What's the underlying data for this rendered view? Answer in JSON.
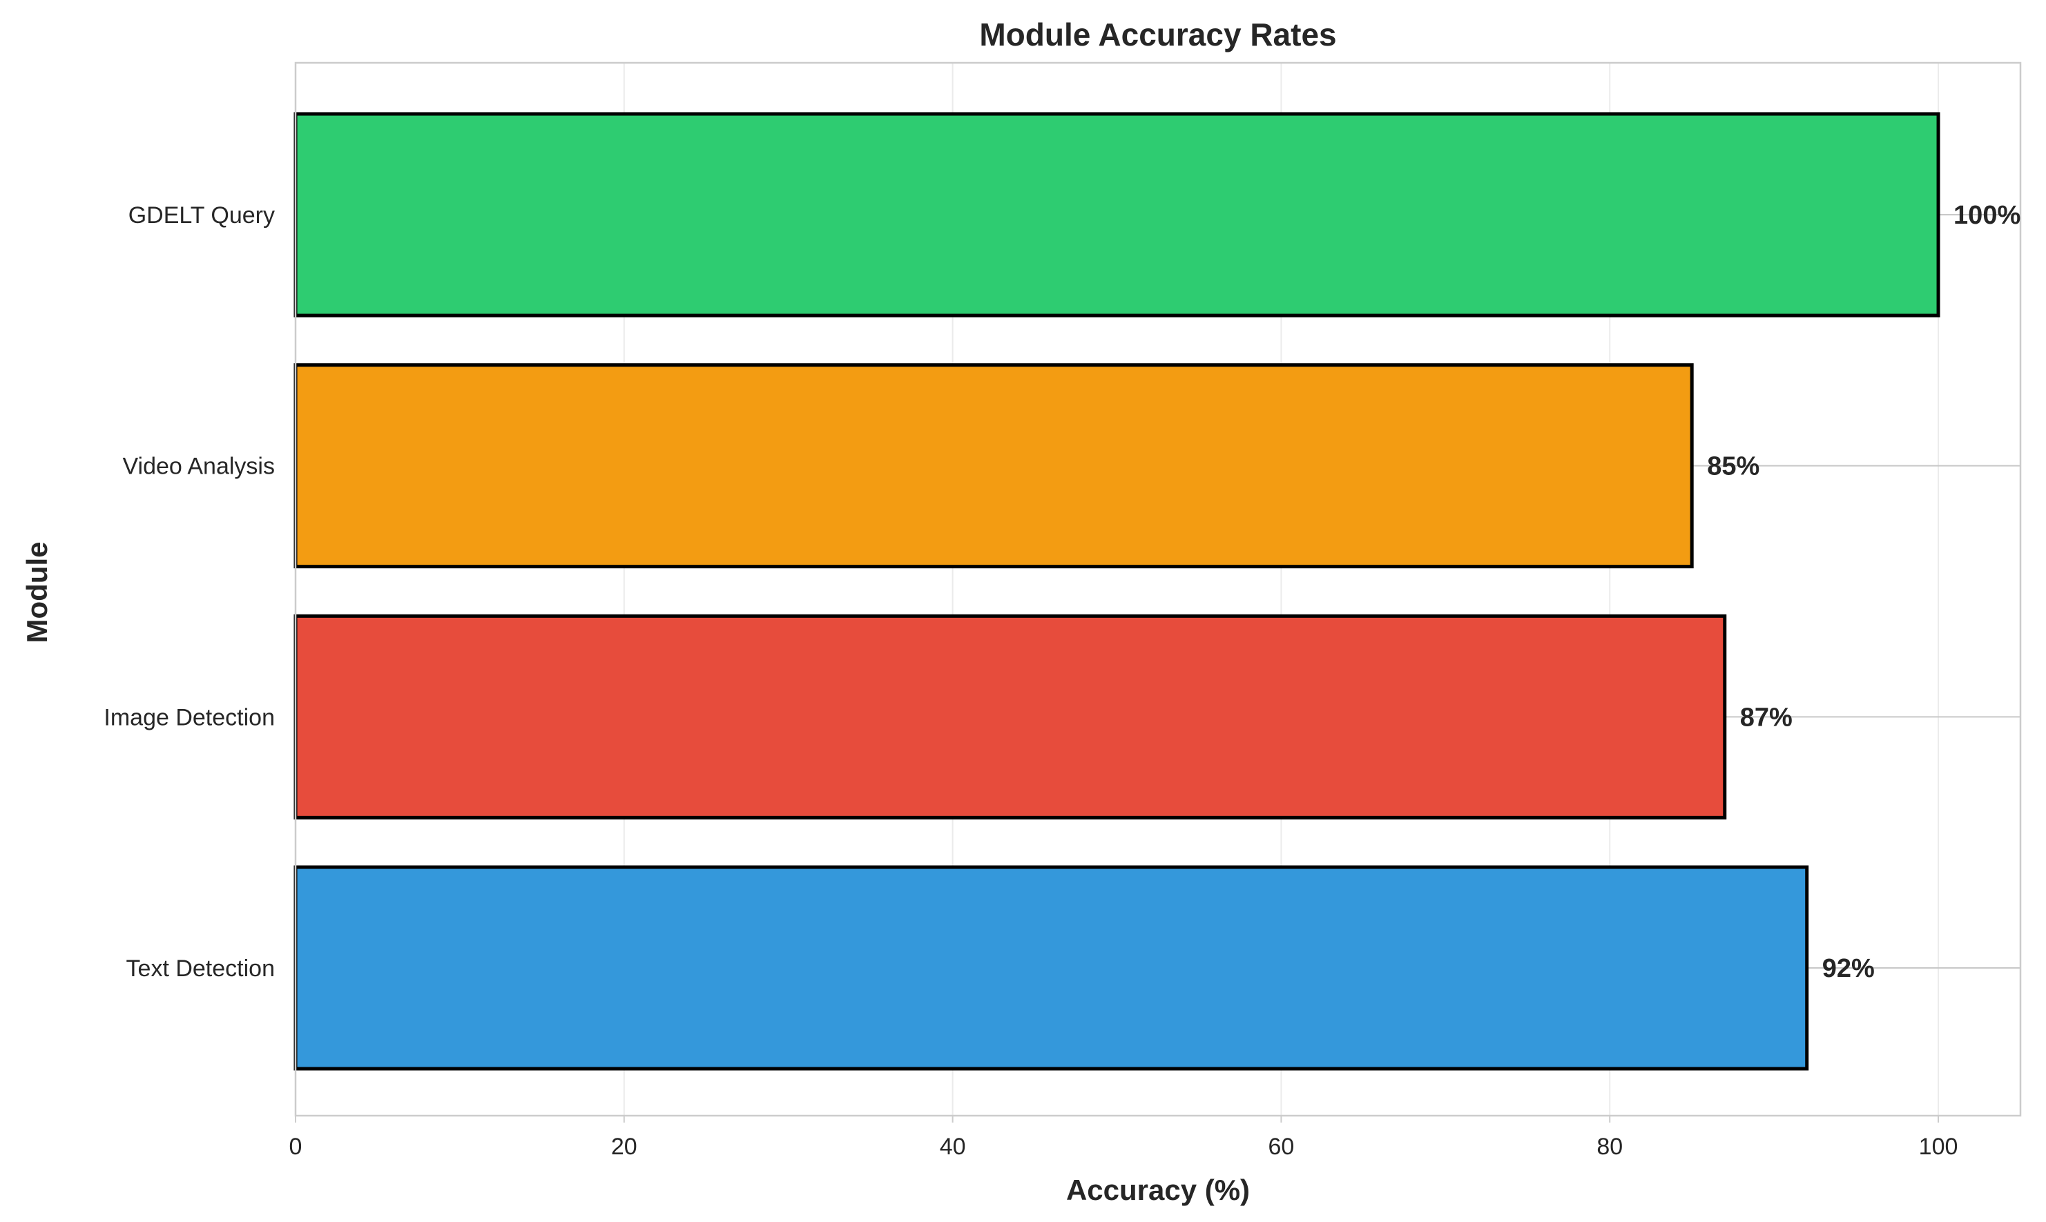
{
  "chart_data": {
    "type": "bar",
    "orientation": "horizontal",
    "title": "Module Accuracy Rates",
    "xlabel": "Accuracy (%)",
    "ylabel": "Module",
    "xlim": [
      0,
      105
    ],
    "xticks": [
      0,
      20,
      40,
      60,
      80,
      100
    ],
    "categories": [
      "Text Detection",
      "Image Detection",
      "Video Analysis",
      "GDELT Query"
    ],
    "values": [
      92,
      87,
      85,
      100
    ],
    "value_labels": [
      "92%",
      "87%",
      "85%",
      "100%"
    ],
    "colors": [
      "#3498db",
      "#e74c3c",
      "#f39c12",
      "#2ecc71"
    ],
    "grid": true,
    "legend": "none"
  }
}
